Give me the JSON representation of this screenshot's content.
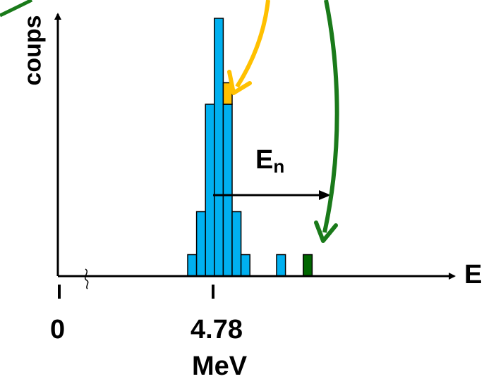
{
  "labels": {
    "y_axis": "coups",
    "x_axis": "E",
    "tick_zero": "0",
    "tick_peak": "4.78",
    "unit": "MeV",
    "arrow_label_main": "E",
    "arrow_label_sub": "n"
  },
  "colors": {
    "bar_fill": "#00b0f0",
    "highlight_yellow": "#ffc000",
    "highlight_green": "#006600",
    "arrow_yellow": "#ffc000",
    "arrow_green": "#1a7a1a",
    "axis": "#000000"
  },
  "histogram": {
    "bins": [
      {
        "counts": 1,
        "color": "blue"
      },
      {
        "counts": 3,
        "color": "blue"
      },
      {
        "counts": 8,
        "color": "blue"
      },
      {
        "counts": 12,
        "color": "blue"
      },
      {
        "counts": 8,
        "color": "blue",
        "topper": {
          "counts": 1,
          "color": "yellow"
        }
      },
      {
        "counts": 3,
        "color": "blue"
      },
      {
        "counts": 1,
        "color": "blue"
      },
      {
        "counts": 0,
        "color": "blue"
      },
      {
        "counts": 0,
        "color": "blue"
      },
      {
        "counts": 0,
        "color": "blue"
      },
      {
        "counts": 1,
        "color": "blue"
      },
      {
        "counts": 0,
        "color": "blue"
      },
      {
        "counts": 0,
        "color": "blue"
      },
      {
        "counts": 1,
        "color": "green"
      }
    ]
  }
}
